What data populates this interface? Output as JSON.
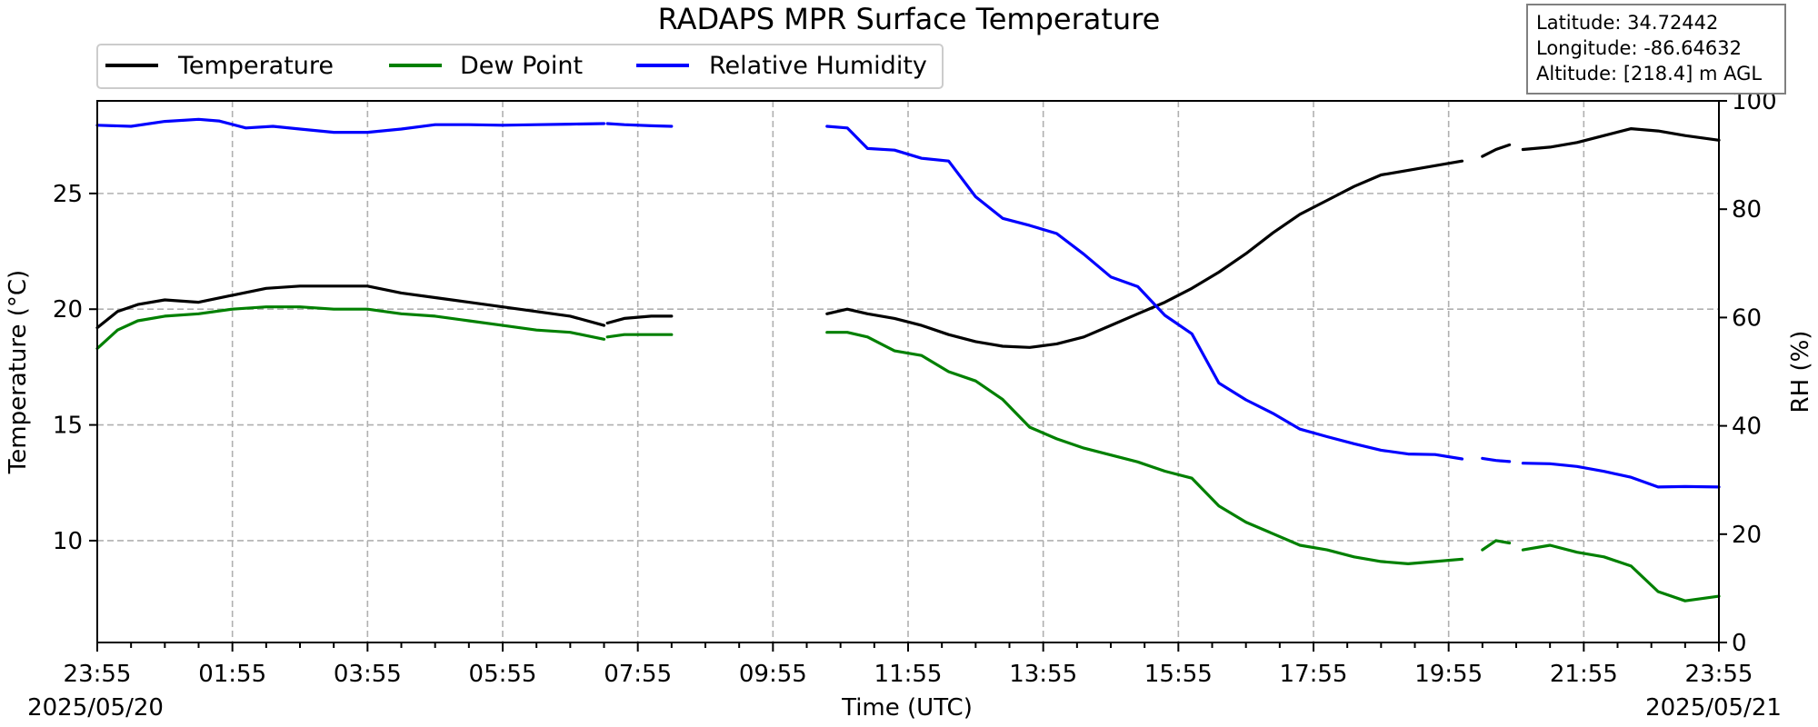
{
  "chart_data": {
    "type": "line",
    "title": "RADAPS MPR Surface Temperature",
    "xlabel": "Time (UTC)",
    "ylabel_left": "Temperature (°C)",
    "ylabel_right": "RH (%)",
    "x_ticks": [
      "23:55",
      "01:55",
      "03:55",
      "05:55",
      "07:55",
      "09:55",
      "11:55",
      "13:55",
      "15:55",
      "17:55",
      "19:55",
      "21:55",
      "23:55"
    ],
    "x_range_hours": [
      0,
      24
    ],
    "start_date": "2025/05/20",
    "end_date": "2025/05/21",
    "ylim_left": [
      5.6,
      29.0
    ],
    "yticks_left": [
      "10",
      "15",
      "20",
      "25"
    ],
    "ylim_right": [
      0,
      100
    ],
    "yticks_right": [
      "0",
      "20",
      "40",
      "60",
      "80",
      "100"
    ],
    "grid": true,
    "legend_position": "top-left",
    "info_box": {
      "latitude": "Latitude: 34.72442",
      "longitude": "Longitude: -86.64632",
      "altitude": "Altitude: [218.4] m AGL"
    },
    "series": [
      {
        "name": "Temperature",
        "color": "#000000",
        "axis": "left",
        "segments": [
          [
            [
              0,
              19.2
            ],
            [
              0.3,
              19.9
            ],
            [
              0.6,
              20.2
            ],
            [
              1,
              20.4
            ],
            [
              1.5,
              20.3
            ],
            [
              2,
              20.6
            ],
            [
              2.5,
              20.9
            ],
            [
              3,
              21.0
            ],
            [
              3.5,
              21.0
            ],
            [
              4,
              21.0
            ],
            [
              4.5,
              20.7
            ],
            [
              5,
              20.5
            ],
            [
              5.5,
              20.3
            ],
            [
              6,
              20.1
            ],
            [
              6.5,
              19.9
            ],
            [
              7,
              19.7
            ],
            [
              7.5,
              19.3
            ]
          ],
          [
            [
              7.55,
              19.4
            ],
            [
              7.8,
              19.6
            ],
            [
              8.2,
              19.7
            ],
            [
              8.5,
              19.7
            ]
          ],
          [
            [
              10.8,
              19.8
            ],
            [
              11.1,
              20.0
            ],
            [
              11.4,
              19.8
            ],
            [
              11.8,
              19.6
            ],
            [
              12.2,
              19.3
            ],
            [
              12.6,
              18.9
            ],
            [
              13,
              18.6
            ],
            [
              13.4,
              18.4
            ],
            [
              13.8,
              18.35
            ],
            [
              14.2,
              18.5
            ],
            [
              14.6,
              18.8
            ],
            [
              15,
              19.3
            ],
            [
              15.4,
              19.8
            ],
            [
              15.8,
              20.3
            ],
            [
              16.2,
              20.9
            ],
            [
              16.6,
              21.6
            ],
            [
              17,
              22.4
            ],
            [
              17.4,
              23.3
            ],
            [
              17.8,
              24.1
            ],
            [
              18.2,
              24.7
            ],
            [
              18.6,
              25.3
            ],
            [
              19,
              25.8
            ],
            [
              19.4,
              26.0
            ],
            [
              19.8,
              26.2
            ],
            [
              20.2,
              26.4
            ]
          ],
          [
            [
              20.5,
              26.6
            ],
            [
              20.7,
              26.9
            ],
            [
              20.9,
              27.1
            ]
          ],
          [
            [
              21.1,
              26.9
            ],
            [
              21.5,
              27.0
            ],
            [
              21.9,
              27.2
            ],
            [
              22.3,
              27.5
            ],
            [
              22.7,
              27.8
            ],
            [
              23.1,
              27.7
            ],
            [
              23.5,
              27.5
            ],
            [
              24,
              27.3
            ]
          ]
        ]
      },
      {
        "name": "Dew Point",
        "color": "#008000",
        "axis": "left",
        "segments": [
          [
            [
              0,
              18.3
            ],
            [
              0.3,
              19.1
            ],
            [
              0.6,
              19.5
            ],
            [
              1,
              19.7
            ],
            [
              1.5,
              19.8
            ],
            [
              2,
              20.0
            ],
            [
              2.5,
              20.1
            ],
            [
              3,
              20.1
            ],
            [
              3.5,
              20.0
            ],
            [
              4,
              20.0
            ],
            [
              4.5,
              19.8
            ],
            [
              5,
              19.7
            ],
            [
              5.5,
              19.5
            ],
            [
              6,
              19.3
            ],
            [
              6.5,
              19.1
            ],
            [
              7,
              19.0
            ],
            [
              7.5,
              18.7
            ]
          ],
          [
            [
              7.55,
              18.8
            ],
            [
              7.8,
              18.9
            ],
            [
              8.2,
              18.9
            ],
            [
              8.5,
              18.9
            ]
          ],
          [
            [
              10.8,
              19.0
            ],
            [
              11.1,
              19.0
            ],
            [
              11.4,
              18.8
            ],
            [
              11.8,
              18.2
            ],
            [
              12.2,
              18.0
            ],
            [
              12.6,
              17.3
            ],
            [
              13,
              16.9
            ],
            [
              13.4,
              16.1
            ],
            [
              13.8,
              14.9
            ],
            [
              14.2,
              14.4
            ],
            [
              14.6,
              14.0
            ],
            [
              15,
              13.7
            ],
            [
              15.4,
              13.4
            ],
            [
              15.8,
              13.0
            ],
            [
              16.2,
              12.7
            ],
            [
              16.6,
              11.5
            ],
            [
              17,
              10.8
            ],
            [
              17.4,
              10.3
            ],
            [
              17.8,
              9.8
            ],
            [
              18.2,
              9.6
            ],
            [
              18.6,
              9.3
            ],
            [
              19,
              9.1
            ],
            [
              19.4,
              9.0
            ],
            [
              19.8,
              9.1
            ],
            [
              20.2,
              9.2
            ]
          ],
          [
            [
              20.5,
              9.6
            ],
            [
              20.7,
              10.0
            ],
            [
              20.9,
              9.9
            ]
          ],
          [
            [
              21.1,
              9.6
            ],
            [
              21.5,
              9.8
            ],
            [
              21.9,
              9.5
            ],
            [
              22.3,
              9.3
            ],
            [
              22.7,
              8.9
            ],
            [
              23.1,
              7.8
            ],
            [
              23.5,
              7.4
            ],
            [
              24,
              7.6
            ]
          ]
        ]
      },
      {
        "name": "Relative Humidity",
        "color": "#0000ff",
        "axis": "right",
        "segments": [
          [
            [
              0,
              95.5
            ],
            [
              0.5,
              95.3
            ],
            [
              1,
              96.2
            ],
            [
              1.5,
              96.6
            ],
            [
              1.8,
              96.3
            ],
            [
              2.2,
              95.0
            ],
            [
              2.6,
              95.3
            ],
            [
              3,
              94.8
            ],
            [
              3.5,
              94.2
            ],
            [
              4,
              94.2
            ],
            [
              4.5,
              94.8
            ],
            [
              5,
              95.6
            ],
            [
              5.5,
              95.6
            ],
            [
              6,
              95.5
            ],
            [
              6.5,
              95.6
            ],
            [
              7,
              95.7
            ],
            [
              7.5,
              95.8
            ]
          ],
          [
            [
              7.55,
              95.8
            ],
            [
              7.8,
              95.6
            ],
            [
              8.2,
              95.4
            ],
            [
              8.5,
              95.3
            ]
          ],
          [
            [
              10.8,
              95.3
            ],
            [
              11.1,
              95.0
            ],
            [
              11.4,
              91.2
            ],
            [
              11.8,
              90.9
            ],
            [
              12.2,
              89.4
            ],
            [
              12.6,
              88.9
            ],
            [
              13,
              82.3
            ],
            [
              13.4,
              78.3
            ],
            [
              13.8,
              77.0
            ],
            [
              14.2,
              75.5
            ],
            [
              14.6,
              71.7
            ],
            [
              15,
              67.5
            ],
            [
              15.4,
              65.7
            ],
            [
              15.8,
              60.4
            ],
            [
              16.2,
              57.0
            ],
            [
              16.6,
              47.9
            ],
            [
              17,
              44.8
            ],
            [
              17.4,
              42.3
            ],
            [
              17.8,
              39.4
            ],
            [
              18.2,
              38.0
            ],
            [
              18.6,
              36.7
            ],
            [
              19,
              35.5
            ],
            [
              19.4,
              34.8
            ],
            [
              19.8,
              34.7
            ],
            [
              20.2,
              33.9
            ]
          ],
          [
            [
              20.5,
              34.0
            ],
            [
              20.7,
              33.6
            ],
            [
              20.9,
              33.4
            ]
          ],
          [
            [
              21.1,
              33.1
            ],
            [
              21.5,
              33.0
            ],
            [
              21.9,
              32.5
            ],
            [
              22.3,
              31.6
            ],
            [
              22.7,
              30.5
            ],
            [
              23.1,
              28.7
            ],
            [
              23.5,
              28.8
            ],
            [
              24,
              28.7
            ]
          ]
        ]
      }
    ]
  }
}
